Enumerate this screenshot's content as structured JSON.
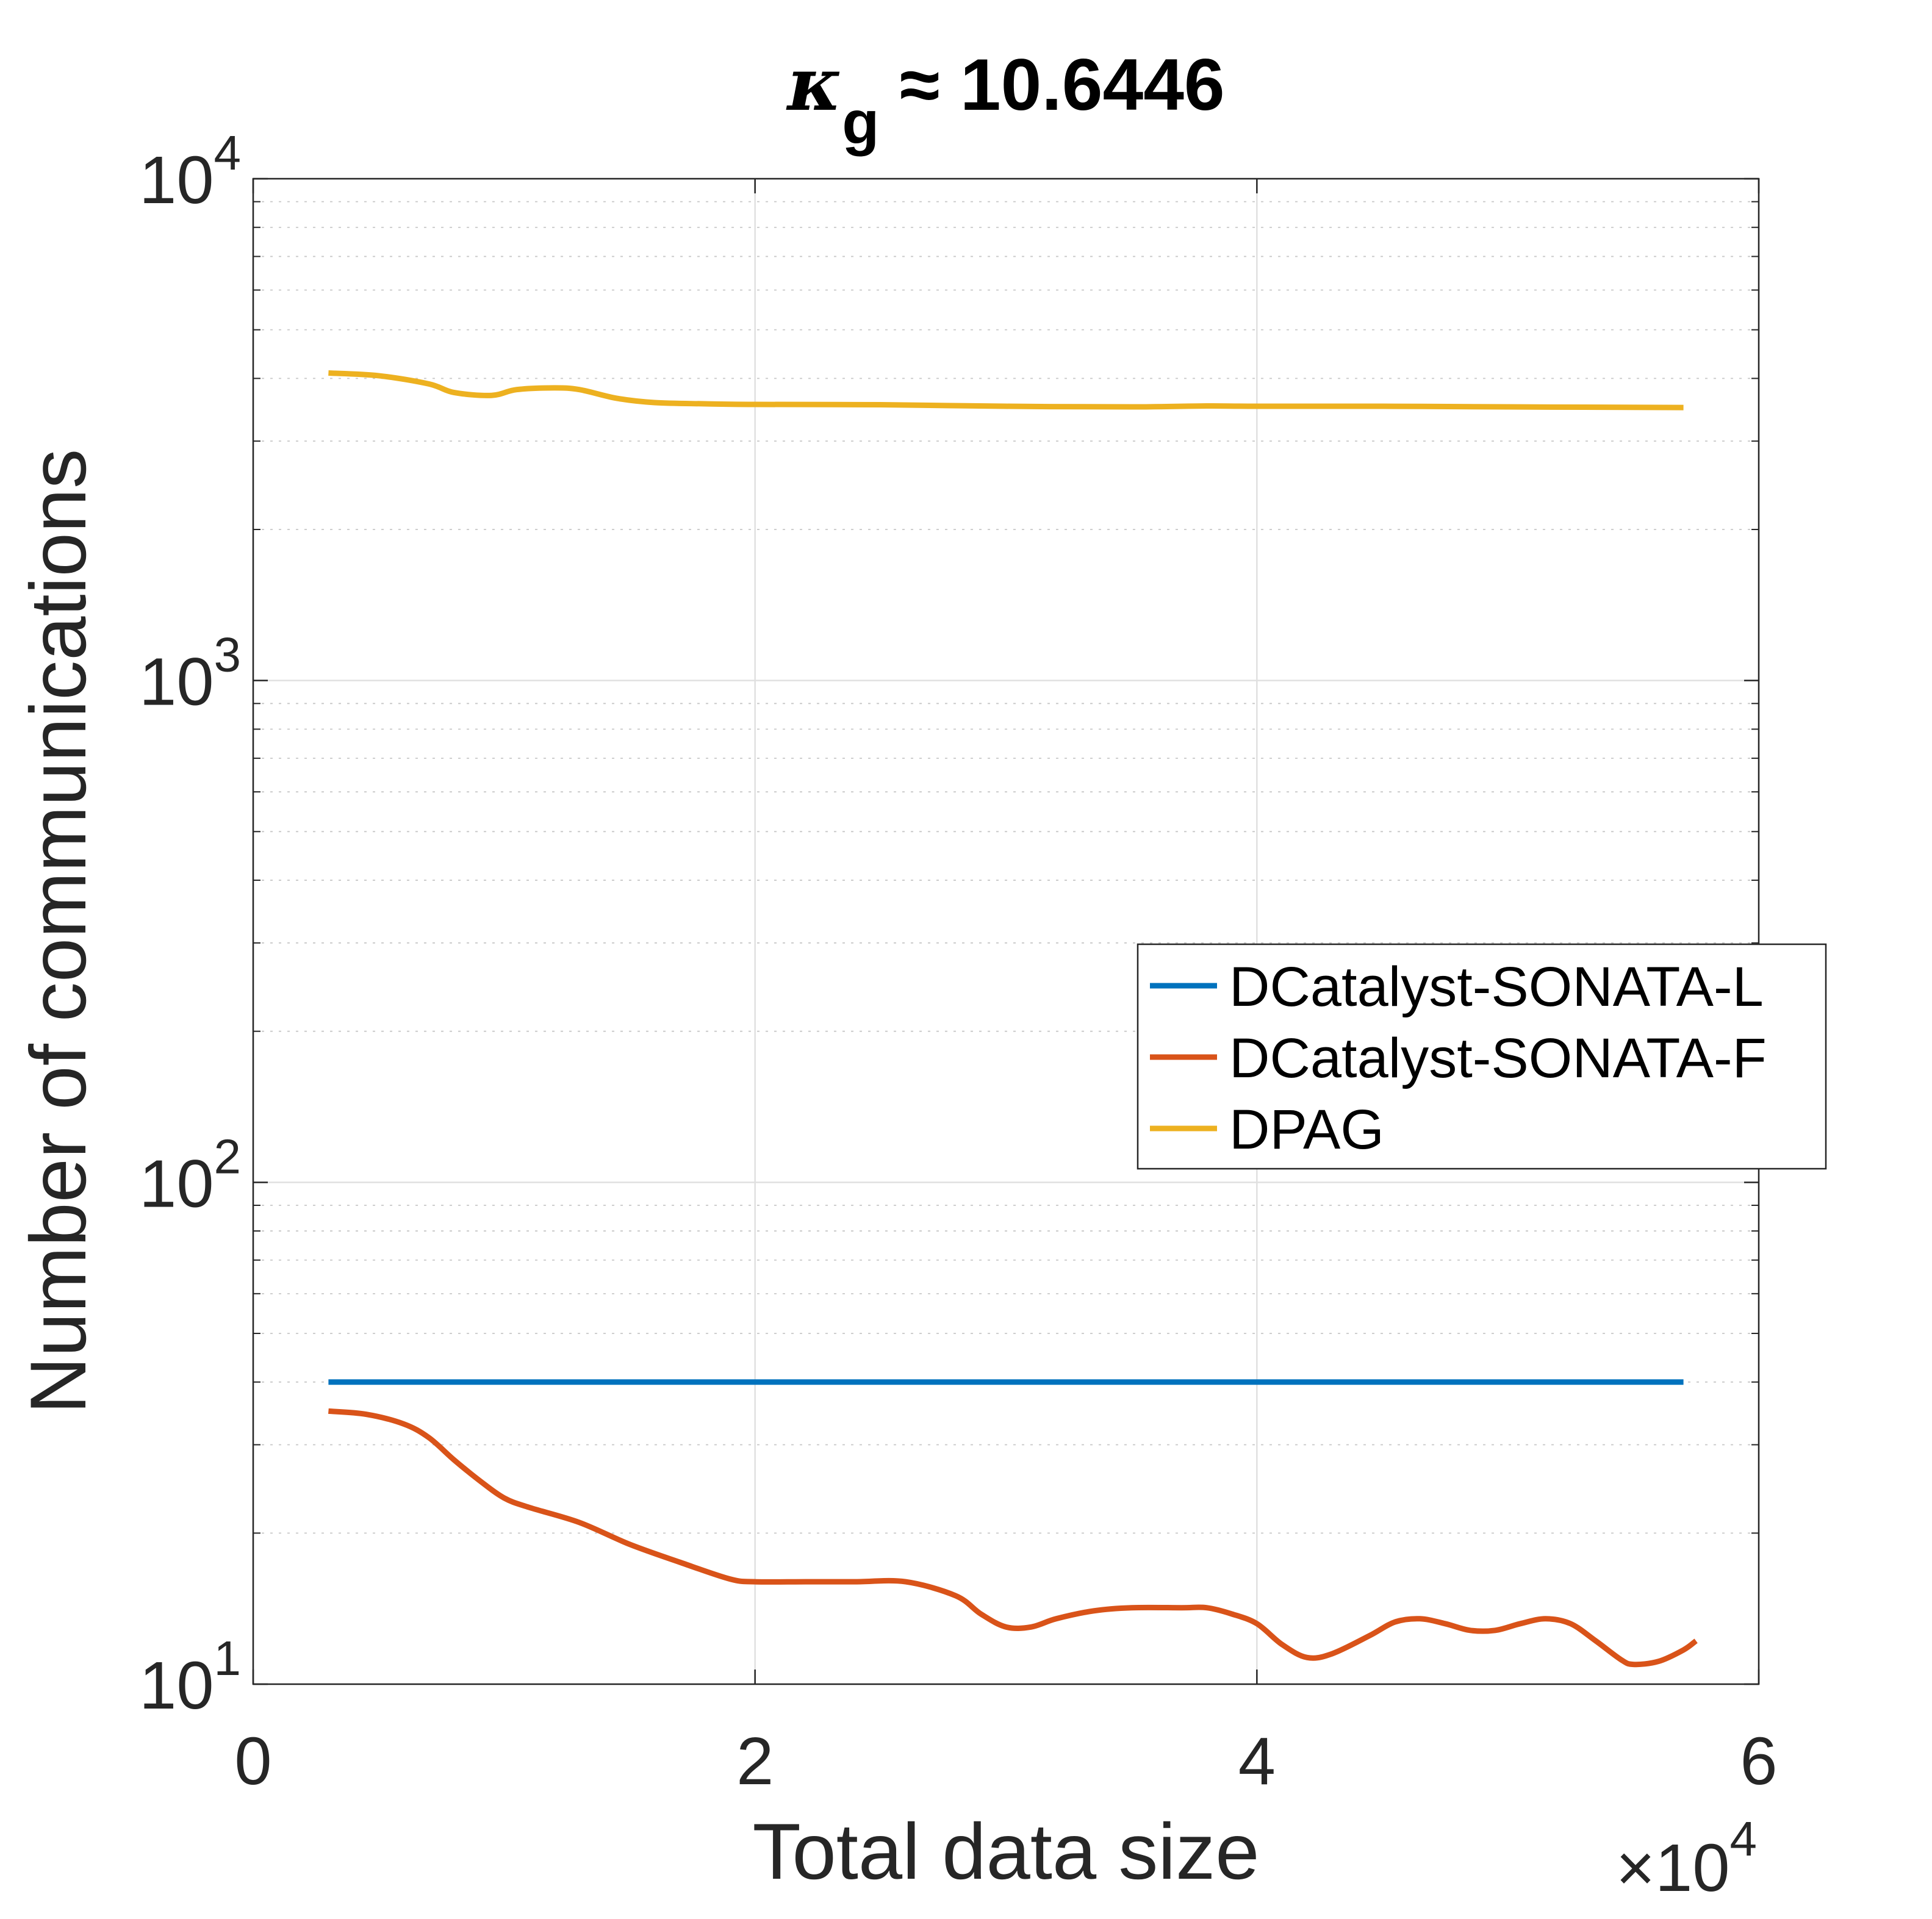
{
  "chart_data": {
    "type": "line",
    "title": "κ_g ≈ 10.6446",
    "title_parts": {
      "symbol": "κ",
      "subscript": "g",
      "rest": " ≈ 10.6446"
    },
    "xlabel": "Total data size",
    "ylabel": "Number of communications",
    "x_exponent": {
      "base": "×10",
      "power": "4"
    },
    "xscale": "linear",
    "yscale": "log",
    "xlim": [
      0,
      6
    ],
    "ylim": [
      10,
      10000
    ],
    "xticks": [
      0,
      2,
      4,
      6
    ],
    "xtick_labels": [
      "0",
      "2",
      "4",
      "6"
    ],
    "yticks": [
      10,
      100,
      1000,
      10000
    ],
    "ytick_labels": [
      {
        "base": "10",
        "power": "1"
      },
      {
        "base": "10",
        "power": "2"
      },
      {
        "base": "10",
        "power": "3"
      },
      {
        "base": "10",
        "power": "4"
      }
    ],
    "grid": true,
    "minor_grid": true,
    "legend_position": "right",
    "series": [
      {
        "name": "DCatalyst-SONATA-L",
        "color": "#0072BD",
        "points": [
          [
            0.3,
            40
          ],
          [
            5.7,
            40
          ]
        ]
      },
      {
        "name": "DCatalyst-SONATA-F",
        "color": "#D95319",
        "points": [
          [
            0.3,
            35
          ],
          [
            0.45,
            34.5
          ],
          [
            0.6,
            33
          ],
          [
            0.7,
            31
          ],
          [
            0.8,
            28
          ],
          [
            0.9,
            25.5
          ],
          [
            1.0,
            23.5
          ],
          [
            1.1,
            22.5
          ],
          [
            1.3,
            21
          ],
          [
            1.5,
            19
          ],
          [
            1.7,
            17.5
          ],
          [
            1.9,
            16.2
          ],
          [
            2.0,
            16
          ],
          [
            2.2,
            16
          ],
          [
            2.4,
            16
          ],
          [
            2.6,
            16
          ],
          [
            2.8,
            15
          ],
          [
            2.9,
            13.8
          ],
          [
            3.0,
            13
          ],
          [
            3.1,
            13
          ],
          [
            3.2,
            13.5
          ],
          [
            3.35,
            14
          ],
          [
            3.5,
            14.2
          ],
          [
            3.7,
            14.2
          ],
          [
            3.8,
            14.2
          ],
          [
            3.9,
            13.8
          ],
          [
            4.0,
            13.2
          ],
          [
            4.1,
            12
          ],
          [
            4.2,
            11.3
          ],
          [
            4.3,
            11.5
          ],
          [
            4.45,
            12.5
          ],
          [
            4.55,
            13.3
          ],
          [
            4.65,
            13.5
          ],
          [
            4.75,
            13.2
          ],
          [
            4.85,
            12.8
          ],
          [
            4.95,
            12.8
          ],
          [
            5.05,
            13.2
          ],
          [
            5.15,
            13.5
          ],
          [
            5.25,
            13.2
          ],
          [
            5.35,
            12.2
          ],
          [
            5.45,
            11.2
          ],
          [
            5.5,
            10.95
          ],
          [
            5.6,
            11.1
          ],
          [
            5.7,
            11.7
          ],
          [
            5.75,
            12.2
          ]
        ]
      },
      {
        "name": "DPAG",
        "color": "#EDB120",
        "points": [
          [
            0.3,
            4100
          ],
          [
            0.5,
            4050
          ],
          [
            0.7,
            3900
          ],
          [
            0.8,
            3750
          ],
          [
            0.95,
            3700
          ],
          [
            1.05,
            3800
          ],
          [
            1.2,
            3830
          ],
          [
            1.3,
            3800
          ],
          [
            1.45,
            3650
          ],
          [
            1.6,
            3580
          ],
          [
            1.8,
            3560
          ],
          [
            2.0,
            3550
          ],
          [
            2.5,
            3545
          ],
          [
            3.0,
            3520
          ],
          [
            3.5,
            3510
          ],
          [
            3.8,
            3525
          ],
          [
            4.0,
            3520
          ],
          [
            4.5,
            3520
          ],
          [
            5.0,
            3510
          ],
          [
            5.7,
            3500
          ]
        ]
      }
    ]
  }
}
